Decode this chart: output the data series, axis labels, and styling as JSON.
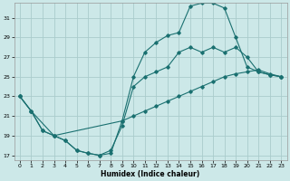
{
  "xlabel": "Humidex (Indice chaleur)",
  "bg_color": "#cce8e8",
  "grid_color": "#aacccc",
  "line_color": "#1a7070",
  "xlim": [
    -0.5,
    23.5
  ],
  "ylim": [
    16.5,
    32.5
  ],
  "xticks": [
    0,
    1,
    2,
    3,
    4,
    5,
    6,
    7,
    8,
    9,
    10,
    11,
    12,
    13,
    14,
    15,
    16,
    17,
    18,
    19,
    20,
    21,
    22,
    23
  ],
  "yticks": [
    17,
    19,
    21,
    23,
    25,
    27,
    29,
    31
  ],
  "line1_x": [
    0,
    1,
    2,
    3,
    4,
    5,
    6,
    7,
    8,
    9,
    10,
    11,
    12,
    13,
    14,
    15,
    16,
    17,
    18,
    19,
    20,
    21,
    22,
    23
  ],
  "line1_y": [
    23,
    21.5,
    19.5,
    19.0,
    18.5,
    17.5,
    17.2,
    17.0,
    17.2,
    20.5,
    25.0,
    27.5,
    28.5,
    29.2,
    29.5,
    32.2,
    32.5,
    32.5,
    32.0,
    29.0,
    26.0,
    25.5,
    25.2,
    25.0
  ],
  "line2_x": [
    0,
    1,
    2,
    3,
    4,
    5,
    6,
    7,
    8,
    9,
    10,
    11,
    12,
    13,
    14,
    15,
    16,
    17,
    18,
    19,
    20,
    21,
    22,
    23
  ],
  "line2_y": [
    23,
    21.5,
    19.5,
    19.0,
    18.5,
    17.5,
    17.2,
    17.0,
    17.5,
    20.0,
    24.0,
    25.0,
    25.5,
    26.0,
    27.5,
    28.0,
    27.5,
    28.0,
    27.5,
    28.0,
    27.0,
    25.5,
    25.2,
    25.0
  ],
  "line3_x": [
    0,
    1,
    3,
    9,
    10,
    11,
    12,
    13,
    14,
    15,
    16,
    17,
    18,
    19,
    20,
    21,
    22,
    23
  ],
  "line3_y": [
    23,
    21.5,
    19.0,
    20.5,
    21.0,
    21.5,
    22.0,
    22.5,
    23.0,
    23.5,
    24.0,
    24.5,
    25.0,
    25.3,
    25.5,
    25.7,
    25.3,
    25.0
  ]
}
